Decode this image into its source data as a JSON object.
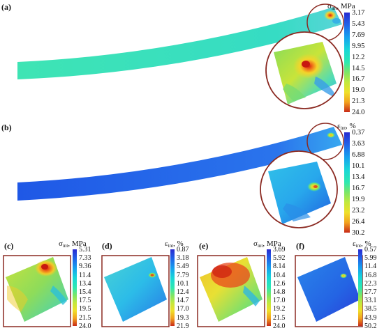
{
  "panels": {
    "a": {
      "label": "(a)",
      "colorbar": {
        "symbol": "σ",
        "subscript": "int",
        "unit": ", MPa",
        "ticks": [
          "3.17",
          "5.43",
          "7.69",
          "9.95",
          "12.2",
          "14.5",
          "16.7",
          "19.0",
          "21.3",
          "24.0"
        ],
        "colors": [
          "#2a2ad0",
          "#1f62e8",
          "#16a2ee",
          "#18d6d8",
          "#2ee8b0",
          "#7de666",
          "#c3e83c",
          "#efe02a",
          "#f2a21e",
          "#e0381c"
        ]
      }
    },
    "b": {
      "label": "(b)",
      "colorbar": {
        "symbol": "ε",
        "subscript": "int",
        "unit": ", %",
        "ticks": [
          "0.37",
          "3.63",
          "6.88",
          "10.1",
          "13.4",
          "16.7",
          "19.9",
          "23.2",
          "26.4",
          "30.2"
        ],
        "colors": [
          "#2a2ad0",
          "#1f62e8",
          "#16a2ee",
          "#18d6d8",
          "#2ee8b0",
          "#7de666",
          "#c3e83c",
          "#efe02a",
          "#f2a21e",
          "#e0381c"
        ]
      }
    },
    "c": {
      "label": "(c)",
      "colorbar": {
        "symbol": "σ",
        "subscript": "int",
        "unit": ", MPa",
        "ticks": [
          "5.31",
          "7.33",
          "9.36",
          "11.4",
          "13.4",
          "15.4",
          "17.5",
          "19.5",
          "21.5",
          "24.0"
        ]
      }
    },
    "d": {
      "label": "(d)",
      "colorbar": {
        "symbol": "ε",
        "subscript": "int",
        "unit": ", %",
        "ticks": [
          "0.87",
          "3.18",
          "5.49",
          "7.79",
          "10.1",
          "12.4",
          "14.7",
          "17.0",
          "19.3",
          "21.9"
        ]
      }
    },
    "e": {
      "label": "(e)",
      "colorbar": {
        "symbol": "σ",
        "subscript": "int",
        "unit": ", MPa",
        "ticks": [
          "3.69",
          "5.92",
          "8.14",
          "10.4",
          "12.6",
          "14.8",
          "17.0",
          "19.2",
          "21.5",
          "24.0"
        ]
      }
    },
    "f": {
      "label": "(f)",
      "colorbar": {
        "symbol": "ε",
        "subscript": "int",
        "unit": ", %",
        "ticks": [
          "0.57",
          "5.99",
          "11.4",
          "16.8",
          "22.3",
          "27.7",
          "33.1",
          "38.5",
          "43.9",
          "50.2"
        ]
      }
    }
  },
  "colors": {
    "frame": "#8b2a22",
    "beam_a": "#3fe0b8",
    "beam_b": "#2060e8"
  }
}
